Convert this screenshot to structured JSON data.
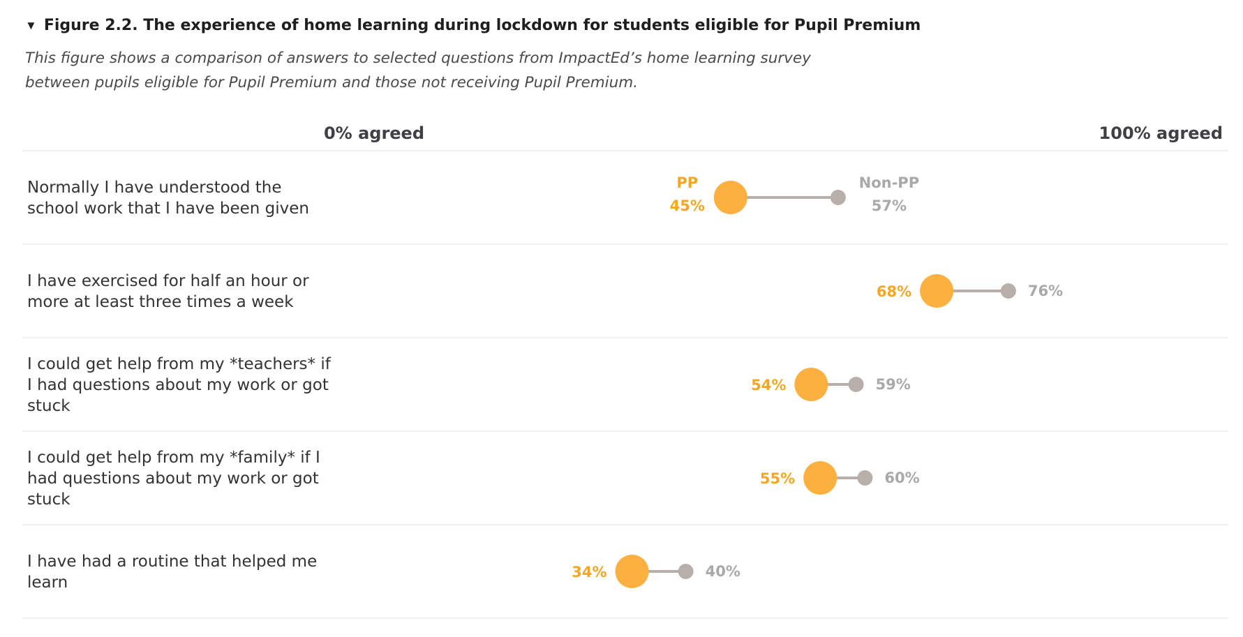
{
  "figure": {
    "toggle_icon": "triangle-down-icon",
    "title": "Figure 2.2. The experience of home learning during lockdown for students eligible for Pupil Premium",
    "subtitle_lines": [
      "This figure shows a comparison of answers to selected questions from ImpactEd’s home learning survey",
      "between pupils eligible for Pupil Premium and those not receiving Pupil Premium."
    ]
  },
  "chart_data": {
    "type": "dumbbell",
    "axis": {
      "min_label": "0% agreed",
      "max_label": "100% agreed",
      "range": [
        0,
        100
      ]
    },
    "series_labels": {
      "pp": "PP",
      "non_pp": "Non-PP"
    },
    "colors": {
      "pp": "#FBB040",
      "non_pp": "#B8AFAB",
      "connector": "#B8AFAB",
      "pp_text": "#F5A623",
      "non_pp_text": "#A9A9A9",
      "divider": "#ECECEC"
    },
    "rows": [
      {
        "question": [
          "Normally I have understood the",
          "school work that I have been given"
        ],
        "pp": 45,
        "non_pp": 57,
        "pp_label": "45%",
        "non_pp_label": "57%"
      },
      {
        "question": [
          "I have exercised for half an hour or",
          "more at least three times a week"
        ],
        "pp": 68,
        "non_pp": 76,
        "pp_label": "68%",
        "non_pp_label": "76%"
      },
      {
        "question": [
          "I could get help from my *teachers* if",
          "I had questions about my work or got",
          "stuck"
        ],
        "pp": 54,
        "non_pp": 59,
        "pp_label": "54%",
        "non_pp_label": "59%"
      },
      {
        "question": [
          "I could get help from my *family* if I",
          "had questions about my work or got",
          "stuck"
        ],
        "pp": 55,
        "non_pp": 60,
        "pp_label": "55%",
        "non_pp_label": "60%"
      },
      {
        "question": [
          "I have had a routine that helped me",
          "learn"
        ],
        "pp": 34,
        "non_pp": 40,
        "pp_label": "34%",
        "non_pp_label": "40%"
      }
    ]
  }
}
